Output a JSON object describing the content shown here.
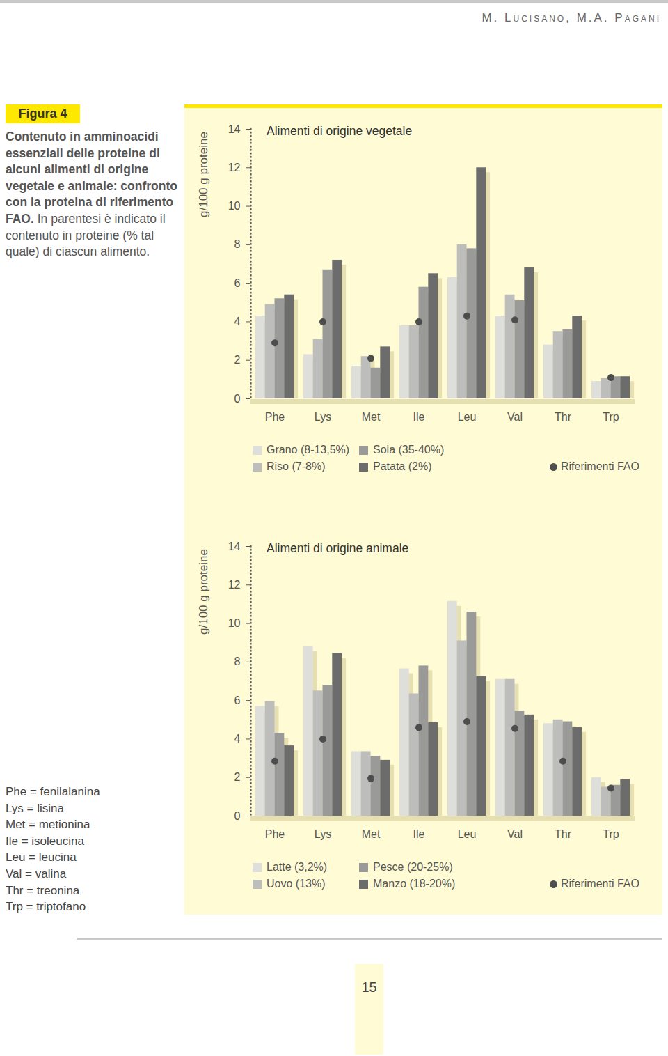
{
  "page": {
    "header": "M. Lucisano, M.A. Pagani",
    "figure_label": "Figura 4",
    "caption_bold": "Contenuto in amminoacidi essenziali delle proteine di alcuni alimenti di origine vegetale e animale: confronto con la proteina di riferimento FAO.",
    "caption": "In parentesi è indicato il contenuto in proteine (% tal quale) di ciascun alimento.",
    "abbreviations": [
      "Phe = fenilalanina",
      "Lys = lisina",
      "Met = metionina",
      "Ile = isoleucina",
      "Leu = leucina",
      "Val = valina",
      "Thr = treonina",
      "Trp = triptofano"
    ],
    "page_number": "15"
  },
  "chart_data": [
    {
      "type": "bar",
      "title": "Alimenti di origine vegetale",
      "ylabel": "g/100 g proteine",
      "categories": [
        "Phe",
        "Lys",
        "Met",
        "Ile",
        "Leu",
        "Val",
        "Thr",
        "Trp"
      ],
      "series": [
        {
          "name": "Grano (8-13,5%)",
          "color": "#dededb",
          "values": [
            4.3,
            2.3,
            1.7,
            3.8,
            6.3,
            4.3,
            2.8,
            0.9
          ]
        },
        {
          "name": "Riso (7-8%)",
          "color": "#bdbdbb",
          "values": [
            4.9,
            3.1,
            2.2,
            3.8,
            8.0,
            5.4,
            3.5,
            1.05
          ]
        },
        {
          "name": "Soia (35-40%)",
          "color": "#9a9a98",
          "values": [
            5.2,
            6.7,
            1.6,
            5.8,
            7.8,
            5.1,
            3.6,
            1.15
          ]
        },
        {
          "name": "Patata (2%)",
          "color": "#6c6c6c",
          "values": [
            5.4,
            7.2,
            2.7,
            6.5,
            12.0,
            6.8,
            4.3,
            1.15
          ]
        },
        {
          "name": "Riferimenti FAO",
          "type": "scatter",
          "marker": "circle",
          "color": "#4d4d4d",
          "values": [
            2.9,
            4.0,
            2.1,
            4.0,
            4.3,
            4.1,
            null,
            1.1
          ]
        }
      ],
      "ylim": [
        0,
        14
      ],
      "yticks": [
        0,
        2,
        4,
        6,
        8,
        10,
        12,
        14
      ]
    },
    {
      "type": "bar",
      "title": "Alimenti di origine animale",
      "ylabel": "g/100 g proteine",
      "categories": [
        "Phe",
        "Lys",
        "Met",
        "Ile",
        "Leu",
        "Val",
        "Thr",
        "Trp"
      ],
      "series": [
        {
          "name": "Latte (3,2%)",
          "color": "#dededb",
          "values": [
            5.7,
            8.8,
            3.35,
            7.65,
            11.15,
            7.1,
            4.8,
            2.0
          ]
        },
        {
          "name": "Uovo (13%)",
          "color": "#bdbdbb",
          "values": [
            5.95,
            6.5,
            3.35,
            6.35,
            9.1,
            7.1,
            5.0,
            1.5
          ]
        },
        {
          "name": "Pesce (20-25%)",
          "color": "#9a9a98",
          "values": [
            4.3,
            6.8,
            3.1,
            7.8,
            10.6,
            5.45,
            4.9,
            1.6
          ]
        },
        {
          "name": "Manzo (18-20%)",
          "color": "#6c6c6c",
          "values": [
            3.65,
            8.45,
            2.9,
            4.85,
            7.25,
            5.25,
            4.6,
            1.9
          ]
        },
        {
          "name": "Riferimenti FAO",
          "type": "scatter",
          "marker": "circle",
          "color": "#4d4d4d",
          "values": [
            2.85,
            4.0,
            1.95,
            4.6,
            4.9,
            4.55,
            2.85,
            1.45
          ]
        }
      ],
      "ylim": [
        0,
        14
      ],
      "yticks": [
        0,
        2,
        4,
        6,
        8,
        10,
        12,
        14
      ]
    }
  ]
}
